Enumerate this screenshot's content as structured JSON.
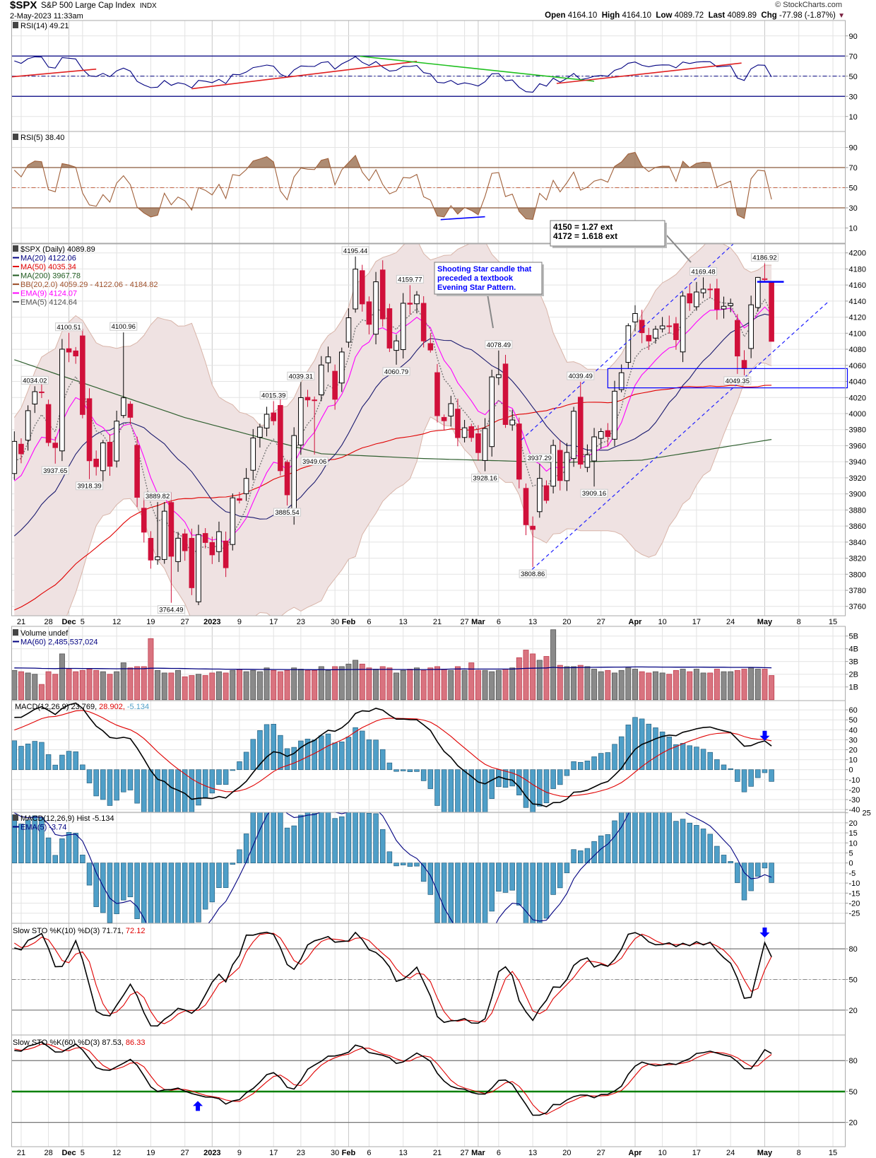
{
  "header": {
    "symbol": "$SPX",
    "name": "S&P 500 Large Cap Index",
    "exchange": "INDX",
    "datetime": "2-May-2023 11:33am",
    "copyright": "© StockCharts.com",
    "open_label": "Open",
    "open_value": "4164.10",
    "high_label": "High",
    "high_value": "4164.10",
    "low_label": "Low",
    "low_value": "4089.72",
    "last_label": "Last",
    "last_value": "4089.89",
    "chg_label": "Chg",
    "chg_value": "-77.98 (-1.87%)",
    "caret": "▼"
  },
  "chart_data": {
    "type": "candlestick",
    "title": "$SPX S&P 500 Large Cap Index INDX (Daily)",
    "closes": [
      3965.34,
      3949.94,
      4003.58,
      4027.26,
      4026.12,
      3963.94,
      3957.63,
      4080.11,
      4076.57,
      4071.7,
      3998.84,
      3941.26,
      3933.92,
      3963.51,
      3934.38,
      3990.56,
      4019.65,
      3995.32,
      3895.75,
      3852.36,
      3817.66,
      3821.62,
      3878.44,
      3822.39,
      3844.82,
      3829.25,
      3783.22,
      3849.28,
      3839.5,
      3824.14,
      3852.97,
      3808.1,
      3895.08,
      3892.09,
      3919.25,
      3969.61,
      3983.17,
      3999.09,
      3990.97,
      3928.86,
      3898.85,
      3972.61,
      4019.81,
      4016.95,
      4016.22,
      4060.43,
      4070.56,
      4017.77,
      4076.6,
      4119.21,
      4179.76,
      4136.48,
      4111.08,
      4164.0,
      4117.86,
      4081.5,
      4090.46,
      4137.29,
      4136.13,
      4147.6,
      4090.41,
      4079.09,
      3997.34,
      3991.05,
      4012.32,
      3970.04,
      3982.24,
      3970.15,
      3951.39,
      3981.35,
      4045.64,
      4048.42,
      3986.37,
      3992.01,
      3918.32,
      3861.59,
      3855.76,
      3919.29,
      3891.93,
      3960.28,
      3916.64,
      3951.57,
      4002.87,
      3936.97,
      3948.72,
      3970.99,
      3977.53,
      3971.27,
      4027.81,
      4050.83,
      4109.31,
      4124.51,
      4100.6,
      4090.38,
      4105.02,
      4109.11,
      4108.94,
      4091.95,
      4146.22,
      4137.64,
      4151.32,
      4154.87,
      4154.52,
      4129.79,
      4133.52,
      4137.04,
      4071.63,
      4055.99,
      4135.35,
      4169.48,
      4167.87,
      4089.89
    ],
    "ohlc_overrides": [
      {
        "index": 109,
        "o": 4132.0,
        "h": 4170.0,
        "l": 4127.0,
        "c": 4169.48
      },
      {
        "index": 110,
        "o": 4166.79,
        "h": 4186.92,
        "l": 4164.0,
        "c": 4167.87
      },
      {
        "index": 111,
        "o": 4164.1,
        "h": 4164.1,
        "l": 4089.72,
        "c": 4089.89
      }
    ],
    "warmup_anchors": [
      [
        -60,
        3980
      ],
      [
        -50,
        3800
      ],
      [
        -42,
        3640
      ],
      [
        -35,
        3590
      ],
      [
        -28,
        3700
      ],
      [
        -22,
        3830
      ],
      [
        -16,
        3800
      ],
      [
        -10,
        3760
      ],
      [
        -6,
        3900
      ],
      [
        -3,
        3960
      ],
      [
        -1,
        3946
      ]
    ],
    "volume_billions": [
      2.3,
      2.2,
      2.1,
      2.0,
      1.2,
      2.2,
      2.0,
      3.6,
      2.4,
      2.2,
      2.3,
      2.4,
      2.3,
      2.2,
      2.0,
      2.2,
      2.9,
      2.5,
      2.6,
      2.6,
      4.8,
      2.3,
      2.1,
      2.1,
      2.3,
      1.8,
      1.9,
      2.0,
      1.9,
      2.1,
      2.2,
      2.1,
      2.3,
      2.4,
      2.2,
      2.3,
      2.2,
      2.5,
      2.3,
      2.2,
      2.3,
      2.5,
      2.4,
      2.3,
      2.3,
      2.6,
      2.3,
      2.6,
      2.6,
      2.8,
      3.1,
      2.8,
      2.5,
      2.4,
      2.6,
      2.5,
      2.1,
      2.3,
      2.4,
      2.5,
      2.3,
      2.5,
      2.6,
      2.4,
      2.3,
      2.6,
      2.3,
      2.9,
      2.3,
      2.3,
      2.2,
      2.3,
      2.4,
      2.5,
      3.3,
      3.9,
      3.6,
      3.1,
      3.4,
      5.5,
      2.7,
      2.6,
      2.6,
      2.7,
      2.6,
      2.4,
      2.2,
      2.3,
      2.1,
      2.3,
      2.5,
      2.4,
      2.2,
      2.1,
      2.2,
      2.1,
      2.0,
      2.3,
      2.4,
      2.2,
      2.4,
      2.1,
      2.1,
      2.4,
      2.2,
      2.2,
      2.3,
      2.4,
      2.5,
      2.4,
      2.4,
      1.9
    ],
    "ma200_points": [
      [
        0,
        4067
      ],
      [
        25,
        3995
      ],
      [
        45,
        3950
      ],
      [
        60,
        3944
      ],
      [
        80,
        3939
      ],
      [
        92,
        3942
      ],
      [
        111,
        3967.78
      ]
    ],
    "x_ticks": [
      {
        "index": 1,
        "label": "21",
        "month": false
      },
      {
        "index": 5,
        "label": "28",
        "month": false
      },
      {
        "index": 8,
        "label": "Dec",
        "month": true
      },
      {
        "index": 10,
        "label": "5",
        "month": false
      },
      {
        "index": 15,
        "label": "12",
        "month": false
      },
      {
        "index": 20,
        "label": "19",
        "month": false
      },
      {
        "index": 25,
        "label": "27",
        "month": false
      },
      {
        "index": 29,
        "label": "2023",
        "month": true
      },
      {
        "index": 33,
        "label": "9",
        "month": false
      },
      {
        "index": 38,
        "label": "17",
        "month": false
      },
      {
        "index": 42,
        "label": "23",
        "month": false
      },
      {
        "index": 47,
        "label": "30",
        "month": false
      },
      {
        "index": 49,
        "label": "Feb",
        "month": true
      },
      {
        "index": 52,
        "label": "6",
        "month": false
      },
      {
        "index": 57,
        "label": "13",
        "month": false
      },
      {
        "index": 62,
        "label": "21",
        "month": false
      },
      {
        "index": 66,
        "label": "27",
        "month": false
      },
      {
        "index": 68,
        "label": "Mar",
        "month": true
      },
      {
        "index": 71,
        "label": "6",
        "month": false
      },
      {
        "index": 76,
        "label": "13",
        "month": false
      },
      {
        "index": 81,
        "label": "20",
        "month": false
      },
      {
        "index": 86,
        "label": "27",
        "month": false
      },
      {
        "index": 91,
        "label": "Apr",
        "month": true
      },
      {
        "index": 95,
        "label": "10",
        "month": false
      },
      {
        "index": 100,
        "label": "17",
        "month": false
      },
      {
        "index": 105,
        "label": "24",
        "month": false
      },
      {
        "index": 110,
        "label": "May",
        "month": true
      },
      {
        "index": 115,
        "label": "8",
        "month": false
      },
      {
        "index": 120,
        "label": "15",
        "month": false
      }
    ],
    "panels": {
      "rsi14": {
        "ticks": [
          "90",
          "70",
          "50",
          "30",
          "10"
        ],
        "legend": [
          {
            "text": "RSI(14) 49.21",
            "color": "#000"
          }
        ]
      },
      "rsi5": {
        "ticks": [
          "90",
          "70",
          "50",
          "30",
          "10"
        ],
        "legend": [
          {
            "text": "RSI(5) 38.40",
            "color": "#000"
          }
        ]
      },
      "price": {
        "ticks": [
          "4200",
          "4180",
          "4160",
          "4140",
          "4120",
          "4100",
          "4080",
          "4060",
          "4040",
          "4020",
          "4000",
          "3980",
          "3960",
          "3940",
          "3920",
          "3900",
          "3880",
          "3860",
          "3840",
          "3820",
          "3800",
          "3780",
          "3760"
        ],
        "legend": [
          {
            "text": "$SPX (Daily) 4089.89",
            "color": "#000"
          },
          {
            "text": "MA(20) 4122.06",
            "color": "#000080"
          },
          {
            "text": "MA(50) 4035.34",
            "color": "#e00000"
          },
          {
            "text": "MA(200) 3967.78",
            "color": "#1f5a1f"
          },
          {
            "text": "BB(20,2.0) 4059.29 - 4122.06 - 4184.82",
            "color": "#a0522d"
          },
          {
            "text": "EMA(9) 4124.07",
            "color": "#ff00ff"
          },
          {
            "text": "EMA(5) 4124.64",
            "color": "#555"
          }
        ]
      },
      "volume": {
        "ticks": [
          "5B",
          "4B",
          "3B",
          "2B",
          "1B"
        ],
        "legend": [
          {
            "text": "Volume undef",
            "color": "#000"
          },
          {
            "text": "MA(60) 2,485,537,024",
            "color": "#000080"
          }
        ]
      },
      "macd": {
        "ticks": [
          "60",
          "50",
          "40",
          "30",
          "20",
          "10",
          "0",
          "-10",
          "-20",
          "-30",
          "-40"
        ],
        "legend_main": "MACD(12,26,9) 23.769,",
        "legend_signal": "28.902,",
        "legend_hist": "-5.134"
      },
      "hist": {
        "ticks": [
          "25",
          "20",
          "15",
          "10",
          "5",
          "0",
          "-5",
          "-10",
          "-15",
          "-20",
          "-25"
        ],
        "legend": [
          {
            "text": "MACD(12,26,9) Hist -5.134",
            "color": "#000"
          },
          {
            "text": "EMA(5) -3.74",
            "color": "#000080"
          }
        ]
      },
      "sto10": {
        "ticks": [
          "80",
          "50",
          "20"
        ],
        "legend_main": "Slow STO %K(10) %D(3) 71.71,",
        "legend_d": "72.12"
      },
      "sto60": {
        "ticks": [
          "80",
          "50",
          "20"
        ],
        "legend_main": "Slow STO %K(60) %D(3) 87.53,",
        "legend_d": "86.33"
      }
    },
    "price_labels": [
      {
        "index": 8,
        "value": 4100.51,
        "type": "high"
      },
      {
        "index": 3,
        "value": 4034.02,
        "type": "high"
      },
      {
        "index": 6,
        "value": 3937.65,
        "type": "low"
      },
      {
        "index": 16,
        "value": 4100.96,
        "type": "high"
      },
      {
        "index": 11,
        "value": 3918.39,
        "type": "low"
      },
      {
        "index": 21,
        "value": 3889.82,
        "type": "high"
      },
      {
        "index": 23,
        "value": 3764.49,
        "type": "low"
      },
      {
        "index": 38,
        "value": 4015.39,
        "type": "high"
      },
      {
        "index": 40,
        "value": 3885.54,
        "type": "low"
      },
      {
        "index": 42,
        "value": 4039.31,
        "type": "high"
      },
      {
        "index": 44,
        "value": 3949.06,
        "type": "low"
      },
      {
        "index": 50,
        "value": 4195.44,
        "type": "high"
      },
      {
        "index": 58,
        "value": 4159.77,
        "type": "high"
      },
      {
        "index": 56,
        "value": 4060.79,
        "type": "low"
      },
      {
        "index": 71,
        "value": 4078.49,
        "type": "high"
      },
      {
        "index": 69,
        "value": 3928.16,
        "type": "low"
      },
      {
        "index": 76,
        "value": 3808.86,
        "type": "low"
      },
      {
        "index": 77,
        "value": 3937.29,
        "type": "high"
      },
      {
        "index": 83,
        "value": 4039.49,
        "type": "high"
      },
      {
        "index": 85,
        "value": 3909.16,
        "type": "low"
      },
      {
        "index": 101,
        "value": 4169.48,
        "type": "high"
      },
      {
        "index": 110,
        "value": 4186.92,
        "type": "high"
      },
      {
        "index": 106,
        "value": 4049.35,
        "type": "low"
      }
    ],
    "trendlines": [
      {
        "panel": "rsi14",
        "color": "#e02020",
        "points": [
          [
            -1,
            49
          ],
          [
            12,
            57
          ]
        ]
      },
      {
        "panel": "rsi14",
        "color": "#e02020",
        "points": [
          [
            26,
            37.5
          ],
          [
            59,
            64.7
          ]
        ]
      },
      {
        "panel": "rsi14",
        "color": "#20c020",
        "points": [
          [
            50.7,
            69.8
          ],
          [
            85,
            45
          ]
        ]
      },
      {
        "panel": "rsi14",
        "color": "#e02020",
        "points": [
          [
            79.5,
            42.8
          ],
          [
            106.6,
            63
          ]
        ]
      },
      {
        "panel": "rsi5",
        "color": "#0000ff",
        "points": [
          [
            62.5,
            18.3
          ],
          [
            69,
            21.2
          ]
        ]
      },
      {
        "panel": "price",
        "color": "#2020ff",
        "dashed": true,
        "points": [
          [
            74.3,
            3967
          ],
          [
            117.1,
            4303
          ]
        ]
      },
      {
        "panel": "price",
        "color": "#2020ff",
        "dashed": true,
        "points": [
          [
            75.9,
            3806
          ],
          [
            119.3,
            4139
          ]
        ]
      },
      {
        "panel": "price",
        "color": "#0000ff",
        "thick": true,
        "points": [
          [
            108.9,
            4164
          ],
          [
            112.8,
            4164
          ]
        ]
      }
    ],
    "price_zone": {
      "from_index": 87,
      "top": 4056,
      "bottom": 4032,
      "color": "#0000ff"
    },
    "arrows": [
      {
        "panel": "macd",
        "index": 110,
        "value": 34,
        "direction": "down"
      },
      {
        "panel": "sto10",
        "index": 110,
        "value": 96,
        "direction": "down"
      },
      {
        "panel": "sto60",
        "index": 26.9,
        "value": 36,
        "direction": "up"
      }
    ],
    "callouts": [
      {
        "lines": [
          "4150 = 1.27 ext",
          "4172 = 1.618 ext"
        ],
        "color": "#000"
      },
      {
        "lines": [
          "Shooting Star candle that",
          "preceded a textbook",
          "Evening Star Pattern."
        ],
        "color": "#0000ff"
      }
    ]
  }
}
